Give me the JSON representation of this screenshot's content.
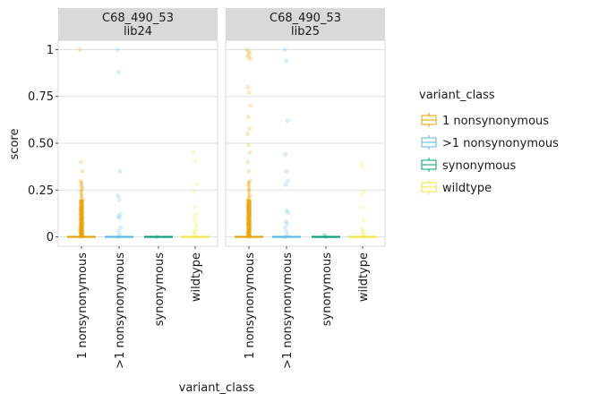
{
  "chart_data": {
    "type": "scatter",
    "subtype": "jitter-boxplot",
    "xlabel": "variant_class",
    "ylabel": "score",
    "ylim": [
      -0.05,
      1.05
    ],
    "yticks": [
      0,
      0.25,
      0.5,
      0.75,
      1
    ],
    "ytick_labels": [
      "0",
      "0.25",
      "0.50",
      "0.75",
      "1"
    ],
    "grid": true,
    "categories": [
      "1 nonsynonymous",
      ">1 nonsynonymous",
      "synonymous",
      "wildtype"
    ],
    "legend": {
      "title": "variant_class",
      "position": "right",
      "entries": [
        {
          "label": "1 nonsynonymous",
          "color": "#E69F00"
        },
        {
          "label": ">1 nonsynonymous",
          "color": "#56B4E9"
        },
        {
          "label": "synonymous",
          "color": "#009E73"
        },
        {
          "label": "wildtype",
          "color": "#F0E442"
        }
      ]
    },
    "facets": [
      {
        "strip_line1": "C68_490_53",
        "strip_line2": "lib24",
        "points": [
          [
            1.0,
            0.4,
            0.35,
            0.3,
            0.28,
            0.26,
            0.24,
            0.22,
            0.2,
            0.18,
            0.16,
            0.15,
            0.14,
            0.13,
            0.12,
            0.11,
            0.1,
            0.09,
            0.08,
            0.07,
            0.06,
            0.05,
            0.045,
            0.04,
            0.035,
            0.03,
            0.025,
            0.02,
            0.015,
            0.01,
            0.005,
            0.0
          ],
          [
            1.0,
            0.88,
            0.35,
            0.22,
            0.2,
            0.12,
            0.11,
            0.1,
            0.05,
            0.03,
            0.01,
            0.0
          ],
          [
            0.0
          ],
          [
            0.45,
            0.41,
            0.28,
            0.24,
            0.16,
            0.12,
            0.1,
            0.08,
            0.06,
            0.04,
            0.03,
            0.02,
            0.01,
            0.0
          ]
        ]
      },
      {
        "strip_line1": "C68_490_53",
        "strip_line2": "lib25",
        "points": [
          [
            1.0,
            0.99,
            0.98,
            0.97,
            0.96,
            0.95,
            0.8,
            0.77,
            0.7,
            0.64,
            0.58,
            0.55,
            0.49,
            0.45,
            0.4,
            0.35,
            0.3,
            0.28,
            0.25,
            0.22,
            0.2,
            0.18,
            0.16,
            0.14,
            0.12,
            0.1,
            0.09,
            0.08,
            0.07,
            0.06,
            0.05,
            0.04,
            0.03,
            0.02,
            0.01,
            0.0
          ],
          [
            1.0,
            0.94,
            0.62,
            0.44,
            0.35,
            0.3,
            0.28,
            0.14,
            0.13,
            0.08,
            0.07,
            0.05,
            0.03,
            0.01,
            0.0
          ],
          [
            0.01,
            0.0
          ],
          [
            0.39,
            0.37,
            0.24,
            0.22,
            0.16,
            0.09,
            0.04,
            0.03,
            0.02,
            0.01,
            0.0
          ]
        ]
      }
    ]
  }
}
